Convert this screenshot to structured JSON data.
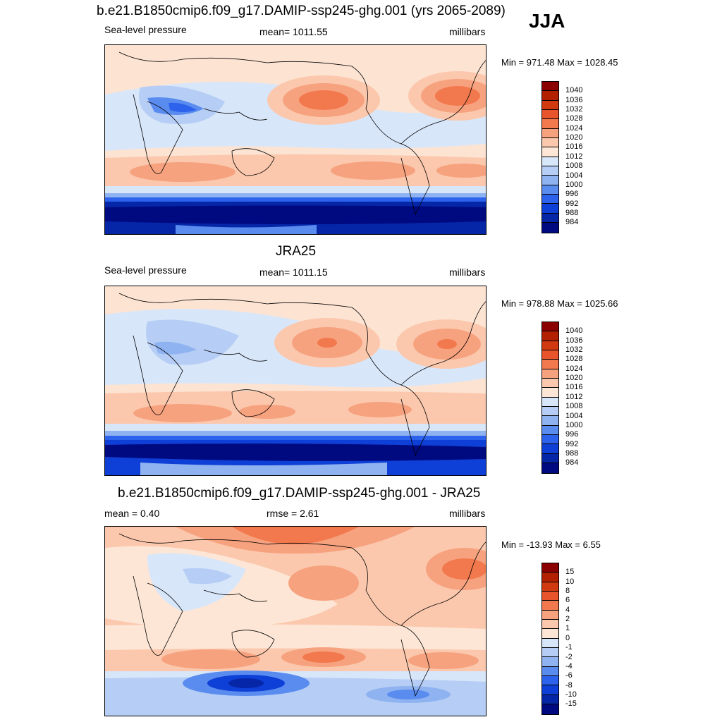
{
  "season": "JJA",
  "panels": [
    {
      "title": "b.e21.B1850cmip6.f09_g17.DAMIP-ssp245-ghg.001 (yrs 2065-2089)",
      "left_label": "Sea-level pressure",
      "center_label": "mean= 1011.55",
      "right_label": "millibars",
      "minmax": "Min = 971.48 Max = 1028.45",
      "colorbar": {
        "labels": [
          "1040",
          "1036",
          "1032",
          "1028",
          "1024",
          "1020",
          "1016",
          "1012",
          "1008",
          "1004",
          "1000",
          "996",
          "992",
          "988",
          "984"
        ],
        "colors": [
          "#8b0000",
          "#b22000",
          "#d13a10",
          "#e8552d",
          "#f2794e",
          "#f7a27f",
          "#fbc8ad",
          "#fde6d6",
          "#d8e6fa",
          "#b6cef5",
          "#8fb2f0",
          "#5a8cf0",
          "#2c62ec",
          "#0e3fd6",
          "#0626a8",
          "#000a80"
        ]
      }
    },
    {
      "title": "JRA25",
      "left_label": "Sea-level pressure",
      "center_label": "mean= 1011.15",
      "right_label": "millibars",
      "minmax": "Min = 978.88 Max = 1025.66",
      "colorbar": {
        "labels": [
          "1040",
          "1036",
          "1032",
          "1028",
          "1024",
          "1020",
          "1016",
          "1012",
          "1008",
          "1004",
          "1000",
          "996",
          "992",
          "988",
          "984"
        ],
        "colors": [
          "#8b0000",
          "#b22000",
          "#d13a10",
          "#e8552d",
          "#f2794e",
          "#f7a27f",
          "#fbc8ad",
          "#fde6d6",
          "#d8e6fa",
          "#b6cef5",
          "#8fb2f0",
          "#5a8cf0",
          "#2c62ec",
          "#0e3fd6",
          "#0626a8",
          "#000a80"
        ]
      }
    },
    {
      "title": "b.e21.B1850cmip6.f09_g17.DAMIP-ssp245-ghg.001 - JRA25",
      "left_label": "mean =   0.40",
      "center_label": "rmse =   2.61",
      "right_label": "millibars",
      "minmax": "Min = -13.93 Max =   6.55",
      "colorbar": {
        "labels": [
          "15",
          "10",
          "8",
          "6",
          "4",
          "2",
          "1",
          "0",
          "-1",
          "-2",
          "-4",
          "-6",
          "-8",
          "-10",
          "-15"
        ],
        "colors": [
          "#8b0000",
          "#b22000",
          "#d13a10",
          "#e8552d",
          "#f2794e",
          "#f7a27f",
          "#fbc8ad",
          "#fde6d6",
          "#d8e6fa",
          "#b6cef5",
          "#8fb2f0",
          "#5a8cf0",
          "#2c62ec",
          "#0e3fd6",
          "#0626a8",
          "#000a80"
        ]
      }
    }
  ]
}
